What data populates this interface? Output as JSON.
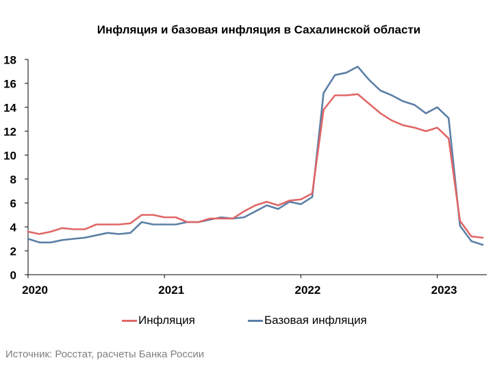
{
  "chart_data": {
    "type": "line",
    "title": "Инфляция и базовая инфляция в Сахалинской области",
    "xlabel": "",
    "ylabel": "",
    "ylim": [
      0,
      18
    ],
    "yticks": [
      "0",
      "2",
      "4",
      "6",
      "8",
      "10",
      "12",
      "14",
      "16",
      "18"
    ],
    "xticks": [
      "2020",
      "2021",
      "2022",
      "2023"
    ],
    "grid": false,
    "legend_position": "bottom",
    "x": [
      "2020-01",
      "2020-02",
      "2020-03",
      "2020-04",
      "2020-05",
      "2020-06",
      "2020-07",
      "2020-08",
      "2020-09",
      "2020-10",
      "2020-11",
      "2020-12",
      "2021-01",
      "2021-02",
      "2021-03",
      "2021-04",
      "2021-05",
      "2021-06",
      "2021-07",
      "2021-08",
      "2021-09",
      "2021-10",
      "2021-11",
      "2021-12",
      "2022-01",
      "2022-02",
      "2022-03",
      "2022-04",
      "2022-05",
      "2022-06",
      "2022-07",
      "2022-08",
      "2022-09",
      "2022-10",
      "2022-11",
      "2022-12",
      "2023-01",
      "2023-02",
      "2023-03",
      "2023-04",
      "2023-05"
    ],
    "series": [
      {
        "name": "Инфляция",
        "color": "#e06666",
        "values": [
          3.6,
          3.4,
          3.6,
          3.9,
          3.8,
          3.8,
          4.2,
          4.2,
          4.2,
          4.3,
          5.0,
          5.0,
          4.8,
          4.8,
          4.4,
          4.4,
          4.7,
          4.7,
          4.7,
          5.3,
          5.8,
          6.1,
          5.8,
          6.2,
          6.3,
          6.8,
          13.8,
          15.0,
          15.0,
          15.1,
          14.3,
          13.5,
          12.9,
          12.5,
          12.3,
          12.0,
          12.3,
          11.4,
          4.5,
          3.2,
          3.1
        ]
      },
      {
        "name": "Базовая инфляция",
        "color": "#5b7fa6",
        "values": [
          3.0,
          2.7,
          2.7,
          2.9,
          3.0,
          3.1,
          3.3,
          3.5,
          3.4,
          3.5,
          4.4,
          4.2,
          4.2,
          4.2,
          4.4,
          4.4,
          4.6,
          4.8,
          4.7,
          4.8,
          5.3,
          5.8,
          5.5,
          6.1,
          5.9,
          6.5,
          15.2,
          16.7,
          16.9,
          17.4,
          16.3,
          15.4,
          15.0,
          14.5,
          14.2,
          13.5,
          14.0,
          13.1,
          4.1,
          2.8,
          2.5
        ]
      }
    ],
    "source": "Источник: Росстат, расчеты Банка России"
  }
}
